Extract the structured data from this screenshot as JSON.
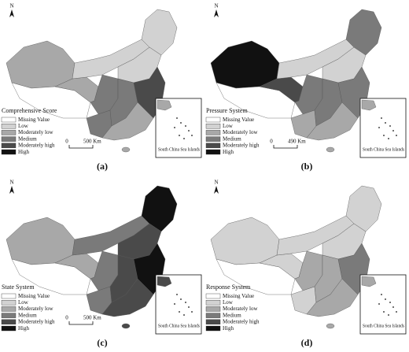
{
  "panels": [
    {
      "label": "(a)",
      "north": "N",
      "legend": {
        "title": "Comprehensive Score",
        "items": [
          "Missing Value",
          "Low",
          "Moderately low",
          "Medium",
          "Moderately high",
          "High"
        ]
      },
      "scale": {
        "start": "0",
        "end": "500 Km"
      },
      "inset": "South China Sea Islands"
    },
    {
      "label": "(b)",
      "north": "N",
      "legend": {
        "title": "Pressure System",
        "items": [
          "Missing Value",
          "Low",
          "Moderately low",
          "Medium",
          "Moderately high",
          "High"
        ]
      },
      "scale": {
        "start": "0",
        "end": "490 Km"
      },
      "inset": "South China Sea Islands"
    },
    {
      "label": "(c)",
      "north": "N",
      "legend": {
        "title": "State System",
        "items": [
          "Missing Value",
          "Low",
          "Moderately low",
          "Medium",
          "Moderately high",
          "High"
        ]
      },
      "scale": {
        "start": "0",
        "end": "500 Km"
      },
      "inset": "South China Sea Islands"
    },
    {
      "label": "(d)",
      "north": "N",
      "legend": {
        "title": "Response System",
        "items": [
          "Missing Value",
          "Low",
          "Moderately low",
          "Medium",
          "Moderately high",
          "High"
        ]
      },
      "inset": "South China Sea Islands"
    }
  ]
}
